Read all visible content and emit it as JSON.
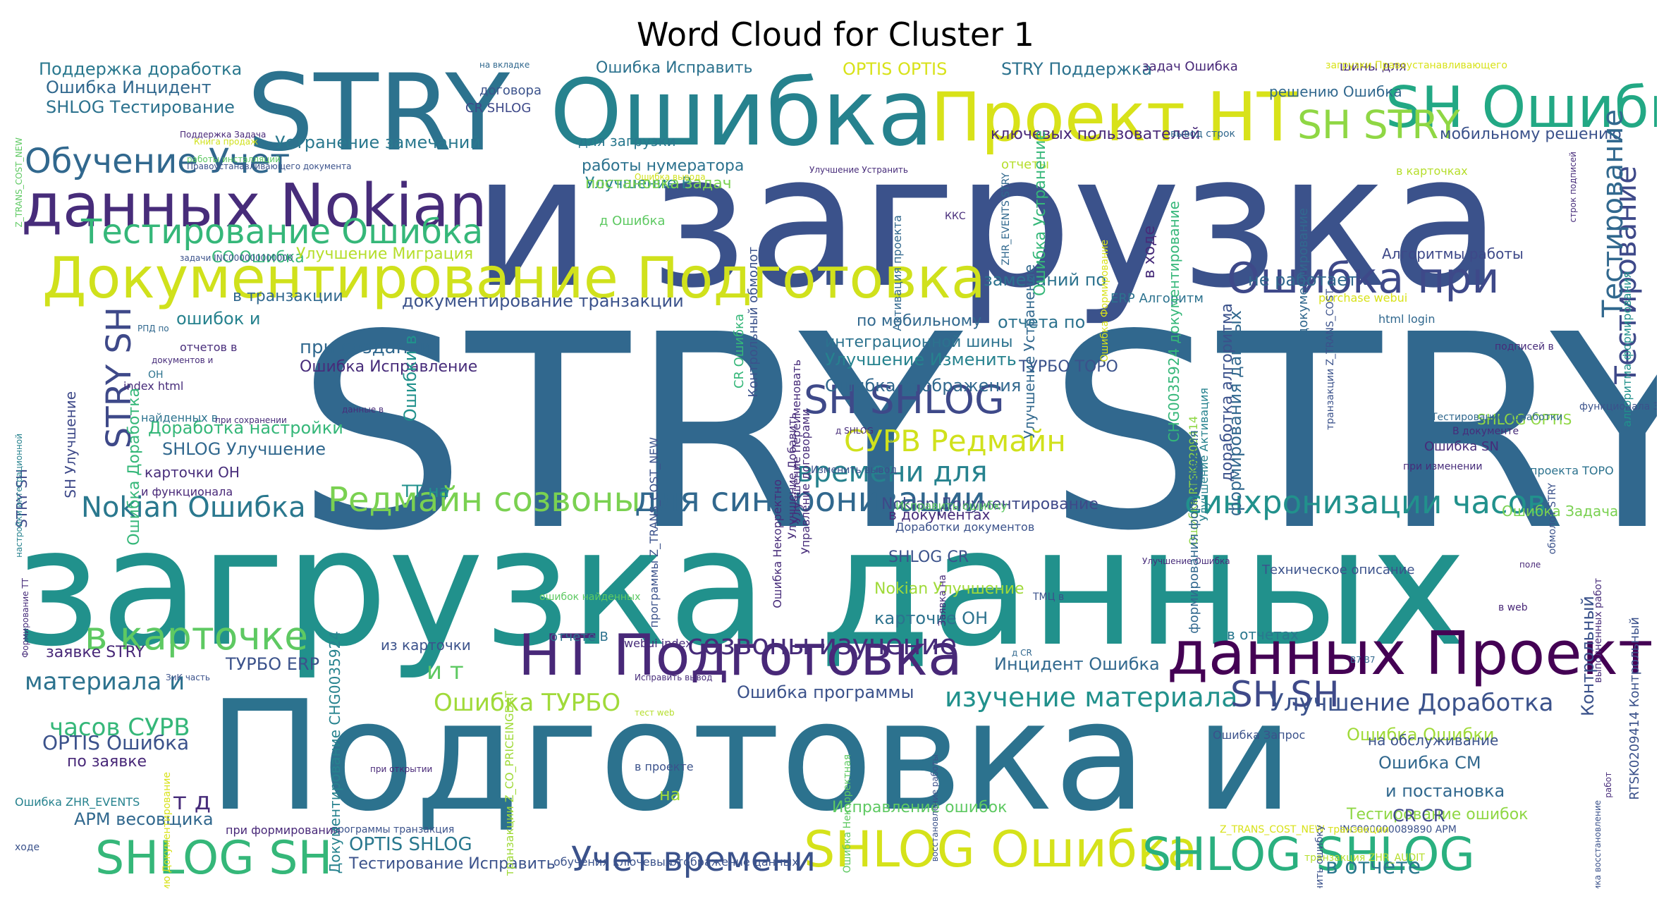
{
  "title": "Word Cloud for Cluster 1",
  "words": [
    {
      "text": "STRY STRY",
      "color": "#31688e"
    },
    {
      "text": "и загрузка",
      "color": "#3b528b"
    },
    {
      "text": "загрузка данных",
      "color": "#21918c"
    },
    {
      "text": "Подготовка и",
      "color": "#2c728e"
    },
    {
      "text": "STRY",
      "color": "#2c728e"
    },
    {
      "text": "Ошибка",
      "color": "#26828e"
    },
    {
      "text": "Проект НТ",
      "color": "#d8e219"
    },
    {
      "text": "SH Ошибка",
      "color": "#22a884"
    },
    {
      "text": "данных Nokian",
      "color": "#472c7a"
    },
    {
      "text": "Документирование Подготовка",
      "color": "#d0e11c"
    },
    {
      "text": "Тестирование Ошибка",
      "color": "#35b779"
    },
    {
      "text": "Обучение Учет",
      "color": "#31688e"
    },
    {
      "text": "Ошибка при",
      "color": "#3e4989"
    },
    {
      "text": "SH STRY",
      "color": "#8fd744"
    },
    {
      "text": "НТ Подготовка",
      "color": "#482878"
    },
    {
      "text": "данных Проект",
      "color": "#440154"
    },
    {
      "text": "в карточке",
      "color": "#5ec962"
    },
    {
      "text": "SHLOG Ошибка",
      "color": "#d5e21a"
    },
    {
      "text": "SHLOG SHLOG",
      "color": "#2ab07f"
    },
    {
      "text": "SHLOG SH",
      "color": "#35b779"
    },
    {
      "text": "Учет времени",
      "color": "#3b528b"
    },
    {
      "text": "SH SHLOG",
      "color": "#3e4989"
    },
    {
      "text": "Редмайн созвоны",
      "color": "#7ad151"
    },
    {
      "text": "для синхронизации",
      "color": "#31688e"
    },
    {
      "text": "синхронизации часов",
      "color": "#21918c"
    },
    {
      "text": "Nokian Ошибка",
      "color": "#2a788e"
    },
    {
      "text": "СУРВ Редмайн",
      "color": "#d0e11c"
    },
    {
      "text": "времени для",
      "color": "#26828e"
    },
    {
      "text": "созвоны изучение",
      "color": "#472c7a"
    },
    {
      "text": "изучение материала",
      "color": "#21918c"
    },
    {
      "text": "SH SH",
      "color": "#3e4989"
    },
    {
      "text": "Улучшение Доработка",
      "color": "#3b528b"
    },
    {
      "text": "материала и",
      "color": "#2c728e"
    },
    {
      "text": "часов СУРВ",
      "color": "#35b779"
    },
    {
      "text": "Ошибка ТУРБО",
      "color": "#a0da39"
    },
    {
      "text": "Поддержка доработка",
      "color": "#2a788e"
    },
    {
      "text": "Ошибка Инцидент",
      "color": "#31688e"
    },
    {
      "text": "SHLOG Тестирование",
      "color": "#2c728e"
    },
    {
      "text": "Устранение замечаний",
      "color": "#2a788e"
    },
    {
      "text": "OPTIS OPTIS",
      "color": "#d8e219"
    },
    {
      "text": "STRY Поддержка",
      "color": "#2c728e"
    },
    {
      "text": "Тестирование",
      "color": "#3e4989"
    },
    {
      "text": "STRY SH",
      "color": "#3e4989"
    },
    {
      "text": "документирование транзакции",
      "color": "#3b528b"
    },
    {
      "text": "при создании",
      "color": "#31688e"
    },
    {
      "text": "Ошибка Исправление",
      "color": "#472c7a"
    },
    {
      "text": "Улучшение Изменить",
      "color": "#26828e"
    },
    {
      "text": "Ошибка отображения",
      "color": "#31688e"
    },
    {
      "text": "OPTIS Ошибка",
      "color": "#3b528b"
    },
    {
      "text": "по заявке",
      "color": "#482878"
    },
    {
      "text": "Ошибка Ошибки",
      "color": "#a0da39"
    },
    {
      "text": "мобильному решению",
      "color": "#3b528b"
    },
    {
      "text": "в отчете",
      "color": "#2a788e"
    },
    {
      "text": "Тестирование ошибок",
      "color": "#8fd744"
    },
    {
      "text": "Исправление ошибок",
      "color": "#5ec962"
    },
    {
      "text": "Тестирование Исправить",
      "color": "#3b528b"
    },
    {
      "text": "OPTIS SHLOG",
      "color": "#2a788e"
    },
    {
      "text": "APM весовщика",
      "color": "#31688e"
    },
    {
      "text": "не работает",
      "color": "#31688e"
    },
    {
      "text": "ключевых пользователей",
      "color": "#482878"
    },
    {
      "text": "Ошибка Исправить",
      "color": "#2c728e"
    },
    {
      "text": "Улучшение В",
      "color": "#26828e"
    },
    {
      "text": "постановка задач",
      "color": "#7ad151"
    },
    {
      "text": "работы нумератора",
      "color": "#2c728e"
    },
    {
      "text": "ТУРБО ERP",
      "color": "#3b528b"
    },
    {
      "text": "заявке STRY",
      "color": "#482878"
    },
    {
      "text": "Инцидент Ошибка",
      "color": "#31688e"
    },
    {
      "text": "Ошибка программы",
      "color": "#3b528b"
    },
    {
      "text": "Nokian Документирование",
      "color": "#3e4989"
    },
    {
      "text": "карточке ОН",
      "color": "#2c728e"
    },
    {
      "text": "SHLOG CR",
      "color": "#3b528b"
    },
    {
      "text": "Nokian Улучшение",
      "color": "#a0da39"
    },
    {
      "text": "SHLOG Улучшение",
      "color": "#31688e"
    },
    {
      "text": "Доработка настройки",
      "color": "#35b779"
    },
    {
      "text": "CO Ошибка",
      "color": "#35b779"
    },
    {
      "text": "Улучшение Миграция",
      "color": "#b5de2b"
    },
    {
      "text": "замечаний по",
      "color": "#2c728e"
    },
    {
      "text": "отчета по",
      "color": "#2c728e"
    },
    {
      "text": "по мобильному",
      "color": "#31688e"
    },
    {
      "text": "интеграционной шины",
      "color": "#2c728e"
    },
    {
      "text": "ТУРБО ТОРО",
      "color": "#3b528b"
    },
    {
      "text": "из карточки",
      "color": "#3b528b"
    },
    {
      "text": "Ошибка CM",
      "color": "#31688e"
    },
    {
      "text": "и постановка",
      "color": "#31688e"
    },
    {
      "text": "на обслуживание",
      "color": "#3b528b"
    },
    {
      "text": "CR CR",
      "color": "#3e4989"
    },
    {
      "text": "т д",
      "color": "#472c7a"
    },
    {
      "text": "и т",
      "color": "#5ec962"
    },
    {
      "text": "ошибок и",
      "color": "#26828e"
    },
    {
      "text": "в транзакции",
      "color": "#31688e"
    },
    {
      "text": "задач Ошибка",
      "color": "#482878"
    },
    {
      "text": "шины для",
      "color": "#472c7a"
    },
    {
      "text": "решению Ошибка",
      "color": "#31688e"
    },
    {
      "text": "договора",
      "color": "#3b528b"
    },
    {
      "text": "для загрузки",
      "color": "#2a788e"
    },
    {
      "text": "CR SHLOG",
      "color": "#3e4989"
    },
    {
      "text": "ERP Алгоритм",
      "color": "#2c728e"
    },
    {
      "text": "Алгоритмы работы",
      "color": "#3e4989"
    },
    {
      "text": "отчете В",
      "color": "#2c728e"
    },
    {
      "text": "ККС",
      "color": "#472c7a"
    },
    {
      "text": "на",
      "color": "#a0da39"
    },
    {
      "text": "ТТ на",
      "color": "#21918c"
    },
    {
      "text": "д Ошибка",
      "color": "#5ec962"
    },
    {
      "text": "в отчетах",
      "color": "#2a788e"
    },
    {
      "text": "карточки ОН",
      "color": "#472c7a"
    },
    {
      "text": "в документах",
      "color": "#472c7a"
    },
    {
      "text": "Техническое описание",
      "color": "#3b528b"
    },
    {
      "text": "Ошибка Запрос",
      "color": "#3b528b"
    },
    {
      "text": "проекта ТОРО",
      "color": "#2c728e"
    },
    {
      "text": "Ошибка Задача",
      "color": "#7ad151"
    },
    {
      "text": "SHLOG OPTIS",
      "color": "#8fd744"
    },
    {
      "text": "Ошибка SN",
      "color": "#472c7a"
    },
    {
      "text": "отчеты",
      "color": "#b5de2b"
    },
    {
      "text": "в карточках",
      "color": "#b5de2b"
    },
    {
      "text": "html login",
      "color": "#31688e"
    },
    {
      "text": "purchase webui",
      "color": "#d8e219"
    },
    {
      "text": "отчетов в",
      "color": "#472c7a"
    },
    {
      "text": "index html",
      "color": "#472c7a"
    },
    {
      "text": "найденных в",
      "color": "#2c728e"
    },
    {
      "text": "и функционала",
      "color": "#482878"
    },
    {
      "text": "Ошибка ZHR_EVENTS",
      "color": "#26828e"
    },
    {
      "text": "в проекте",
      "color": "#3b528b"
    },
    {
      "text": "webui index",
      "color": "#472c7a"
    },
    {
      "text": "Исправить ошибку",
      "color": "#5ec962"
    },
    {
      "text": "Доработки документов",
      "color": "#3b528b"
    },
    {
      "text": "загрузки Правоустанавливающего",
      "color": "#d8e219"
    },
    {
      "text": "вывод строк",
      "color": "#31688e"
    },
    {
      "text": "Книга продаж",
      "color": "#d0e11c"
    },
    {
      "text": "на вкладке",
      "color": "#31688e"
    },
    {
      "text": "при формировании",
      "color": "#482878"
    },
    {
      "text": "программы транзакция",
      "color": "#3b528b"
    },
    {
      "text": "обучения ключевых",
      "color": "#3b528b"
    },
    {
      "text": "отображение данных",
      "color": "#3b528b"
    },
    {
      "text": "транзакция ZHR_AUDIT",
      "color": "#b5de2b"
    },
    {
      "text": "INC000000089890 APM",
      "color": "#3b528b"
    },
    {
      "text": "Z_TRANS_COST_NEW транзакции",
      "color": "#d8e219"
    },
    {
      "text": "ходе",
      "color": "#3b528b"
    },
    {
      "text": "тест web",
      "color": "#b5de2b"
    },
    {
      "text": "Исправить вывод",
      "color": "#472c7a"
    },
    {
      "text": "Изменить вывод",
      "color": "#3b528b"
    },
    {
      "text": "Тестирование доработки",
      "color": "#31688e"
    },
    {
      "text": "В документе",
      "color": "#472c7a"
    },
    {
      "text": "функционала ЗиК",
      "color": "#3b528b"
    },
    {
      "text": "подписей в",
      "color": "#472c7a"
    },
    {
      "text": "при изменении",
      "color": "#472c7a"
    },
    {
      "text": "Улучшение Устранить",
      "color": "#472c7a"
    },
    {
      "text": "Ошибка вывода",
      "color": "#d0e11c"
    },
    {
      "text": "работы инсталляций",
      "color": "#5ec962"
    },
    {
      "text": "Правоустанавливающего документа",
      "color": "#3b528b"
    },
    {
      "text": "задачи INC000000000000",
      "color": "#3b528b"
    },
    {
      "text": "Поддержка Задача",
      "color": "#482878"
    },
    {
      "text": "РПД по",
      "color": "#31688e"
    },
    {
      "text": "документов и",
      "color": "#472c7a"
    },
    {
      "text": "при сохранении",
      "color": "#472c7a"
    },
    {
      "text": "ОН",
      "color": "#2c728e"
    },
    {
      "text": "данные в",
      "color": "#472c7a"
    },
    {
      "text": "при открытии",
      "color": "#482878"
    },
    {
      "text": "ошибок найденных",
      "color": "#5ec962"
    },
    {
      "text": "ЗиК часть",
      "color": "#3b528b"
    },
    {
      "text": "ТМЦ в",
      "color": "#3b528b"
    },
    {
      "text": "д CR",
      "color": "#31688e"
    },
    {
      "text": "в web",
      "color": "#482878"
    },
    {
      "text": "поле",
      "color": "#482878"
    },
    {
      "text": "Улучшение Ошибка",
      "color": "#472c7a"
    },
    {
      "text": "B7 B7",
      "color": "#31688e"
    },
    {
      "text": "в",
      "color": "#2c728e"
    },
    {
      "text": "д SHLOG",
      "color": "#472c7a"
    },
    {
      "text": "Ошибка RTSK0209414",
      "color": "#8fd744"
    },
    {
      "text": "Активация проекта",
      "color": "#31688e"
    },
    {
      "text": "ZHR_EVENTS STRY",
      "color": "#31688e"
    },
    {
      "text": "Ошибка Устранение",
      "color": "#35b779"
    },
    {
      "text": "Улучшение Устранение",
      "color": "#31688e"
    },
    {
      "text": "CHG0035924 документирование",
      "color": "#35b779"
    },
    {
      "text": "доработка алгоритма",
      "color": "#3b528b"
    },
    {
      "text": "формирования данных",
      "color": "#31688e"
    },
    {
      "text": "Улучшение Активация",
      "color": "#26828e"
    },
    {
      "text": "формирования формирования",
      "color": "#31688e"
    },
    {
      "text": "Тестирование",
      "color": "#31688e"
    },
    {
      "text": "алгоритма формирования",
      "color": "#21918c"
    },
    {
      "text": "строк подписей",
      "color": "#472c7a"
    },
    {
      "text": "RTSK0209414 Контрольный",
      "color": "#3b528b"
    },
    {
      "text": "выполненных работ",
      "color": "#472c7a"
    },
    {
      "text": "обмолот STRY",
      "color": "#3b528b"
    },
    {
      "text": "транзакции Z_TRANS_COST",
      "color": "#3b528b"
    },
    {
      "text": "документирование",
      "color": "#31688e"
    },
    {
      "text": "в ходе",
      "color": "#472c7a"
    },
    {
      "text": "Ошибка Формирование",
      "color": "#d8e219"
    },
    {
      "text": "Управление договорами",
      "color": "#472c7a"
    },
    {
      "text": "Улучшение Переименовать",
      "color": "#472c7a"
    },
    {
      "text": "Улучшение Добавить",
      "color": "#472c7a"
    },
    {
      "text": "Ошибка Некорректно",
      "color": "#472c7a"
    },
    {
      "text": "Контрольный обмолот",
      "color": "#3b528b"
    },
    {
      "text": "CR Ошибка",
      "color": "#35b779"
    },
    {
      "text": "Ошибка Доработка",
      "color": "#35b779"
    },
    {
      "text": "Ошибки в",
      "color": "#21918c"
    },
    {
      "text": "STRY SH",
      "color": "#3e4989"
    },
    {
      "text": "SH Улучшение",
      "color": "#3e4989"
    },
    {
      "text": "настройки интеграционной",
      "color": "#26828e"
    },
    {
      "text": "программы Z_TRANS_COST_NEW",
      "color": "#3b528b"
    },
    {
      "text": "Z_TRANS_COST_NEW",
      "color": "#5ec962"
    },
    {
      "text": "Документирование CHG0035924",
      "color": "#26828e"
    },
    {
      "text": "транзакции Z_CO_PRICEINGDAT",
      "color": "#a0da39"
    },
    {
      "text": "Формирование ТТ",
      "color": "#472c7a"
    },
    {
      "text": "решению Документирование",
      "color": "#d8e219"
    },
    {
      "text": "восстановление работы",
      "color": "#3b528b"
    },
    {
      "text": "Ошибка Некорректная",
      "color": "#5ec962"
    },
    {
      "text": "Заявка на",
      "color": "#472c7a"
    },
    {
      "text": "Устранить ошибку",
      "color": "#3b528b"
    },
    {
      "text": "весовщика восстановление",
      "color": "#3b528b"
    },
    {
      "text": "Контрольный",
      "color": "#3b528b"
    },
    {
      "text": "работ",
      "color": "#472c7a"
    }
  ]
}
